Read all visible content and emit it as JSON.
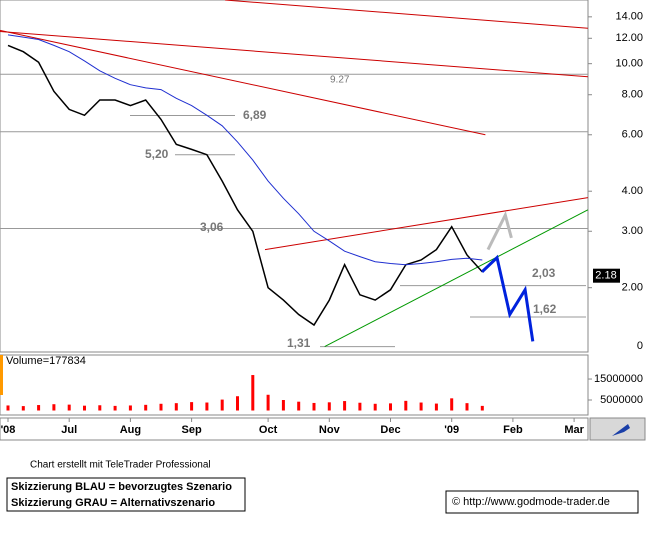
{
  "chart_data": {
    "type": "line",
    "y_scale": "log",
    "ylim": [
      1.26,
      15.8
    ],
    "yticks": [
      {
        "value": 14,
        "label": "14.00"
      },
      {
        "value": 12,
        "label": "12.00"
      },
      {
        "value": 10,
        "label": "10.00"
      },
      {
        "value": 8,
        "label": "8.00"
      },
      {
        "value": 6,
        "label": "6.00"
      },
      {
        "value": 4,
        "label": "4.00"
      },
      {
        "value": 3,
        "label": "3.00"
      },
      {
        "value": 2,
        "label": "2.00"
      }
    ],
    "axis_floor_label": "0",
    "categories": [
      "'08",
      null,
      null,
      null,
      "Jul",
      null,
      null,
      null,
      "Aug",
      null,
      null,
      null,
      "Sep",
      null,
      null,
      null,
      null,
      "Oct",
      null,
      null,
      null,
      "Nov",
      null,
      null,
      null,
      "Dec",
      null,
      null,
      null,
      "'09",
      null,
      null,
      null,
      "Feb",
      null,
      null,
      null,
      "Mar"
    ],
    "series": [
      {
        "color": "#000000",
        "values": [
          11.4,
          10.9,
          10.1,
          8.2,
          7.2,
          6.9,
          7.7,
          7.7,
          7.4,
          7.7,
          6.7,
          5.6,
          5.4,
          5.2,
          4.3,
          3.5,
          3.0,
          2.0,
          1.83,
          1.65,
          1.53,
          1.83,
          2.36,
          1.9,
          1.83,
          1.97,
          2.36,
          2.44,
          2.63,
          3.1,
          2.53,
          2.24,
          null,
          null,
          null,
          null,
          null,
          null
        ]
      },
      {
        "color": "#1f2fd0",
        "values": [
          12.3,
          12.1,
          11.9,
          11.4,
          10.9,
          10.2,
          9.5,
          9.0,
          8.6,
          8.4,
          8.3,
          7.8,
          7.4,
          6.9,
          6.4,
          5.7,
          5.0,
          4.3,
          3.8,
          3.4,
          3.0,
          2.8,
          2.6,
          2.5,
          2.41,
          2.38,
          2.36,
          2.38,
          2.41,
          2.45,
          2.47,
          2.44,
          null,
          null,
          null,
          null,
          null,
          null
        ]
      }
    ],
    "trendlines": [
      {
        "color": "#cc0000",
        "x": [
          14.18,
          37.9
        ],
        "values": [
          15.8,
          12.9
        ]
      },
      {
        "color": "#cc0000",
        "x": [
          -0.52,
          37.9
        ],
        "values": [
          12.6,
          9.1
        ]
      },
      {
        "color": "#cc0000",
        "x": [
          -0.52,
          31.2
        ],
        "values": [
          12.7,
          6.0
        ]
      },
      {
        "color": "#cc0000",
        "x": [
          16.8,
          37.9
        ],
        "values": [
          2.63,
          3.82
        ]
      },
      {
        "color": "#009900",
        "x": [
          20.7,
          37.9
        ],
        "values": [
          1.31,
          3.5
        ]
      }
    ],
    "projections": [
      {
        "color": "#0022dd",
        "x": [
          30.98,
          31.96,
          32.8,
          33.8,
          34.3
        ],
        "values": [
          2.24,
          2.48,
          1.65,
          1.97,
          1.36
        ]
      },
      {
        "color": "#bbbbbb",
        "x": [
          31.37,
          32.5,
          32.9
        ],
        "values": [
          2.63,
          3.37,
          2.86
        ]
      }
    ],
    "levels": [
      {
        "value": 9.27,
        "label": "9.27"
      },
      {
        "value": 6.89,
        "label": "6,89"
      },
      {
        "value": 6.13
      },
      {
        "value": 5.2,
        "label": "5,20"
      },
      {
        "value": 3.06,
        "label": "3,06"
      },
      {
        "value": 2.03,
        "label": "2,03"
      },
      {
        "value": 1.62,
        "label": "1,62"
      },
      {
        "value": 1.31,
        "label": "1,31"
      }
    ],
    "last_price": 2.18,
    "volume": {
      "label": "Volume=177834",
      "color": "#ff0000",
      "ylim": [
        0,
        25500000
      ],
      "yticks": [
        15000000,
        5000000
      ],
      "values": [
        2400000,
        2100000,
        2600000,
        3000000,
        2800000,
        2300000,
        2500000,
        2200000,
        2400000,
        2700000,
        3200000,
        3500000,
        4000000,
        3800000,
        5200000,
        6800000,
        16900000,
        7500000,
        5000000,
        4200000,
        3600000,
        3900000,
        4500000,
        3700000,
        3200000,
        3400000,
        4600000,
        3800000,
        3300000,
        5800000,
        3500000,
        2200000,
        null,
        null,
        null,
        null,
        null,
        null
      ]
    }
  },
  "footer": {
    "credit": "Chart erstellt mit TeleTrader Professional",
    "scenario_lines": [
      "Skizzierung BLAU = bevorzugtes Szenario",
      "Skizzierung GRAU = Alternativszenario"
    ],
    "source": "© http://www.godmode-trader.de"
  }
}
